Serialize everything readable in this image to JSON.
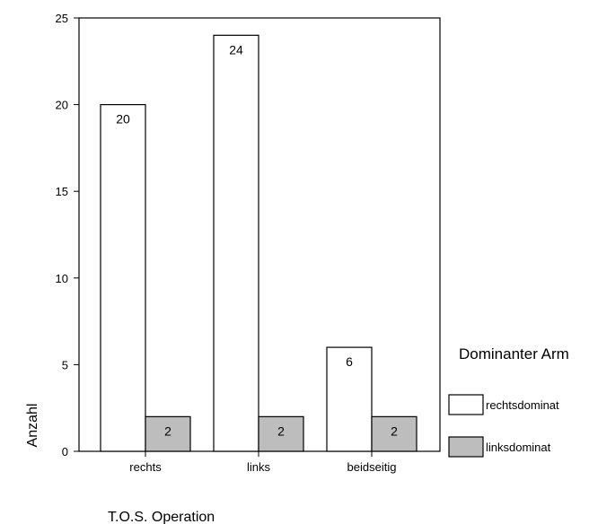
{
  "chart_data": {
    "type": "bar",
    "categories": [
      "rechts",
      "links",
      "beidseitig"
    ],
    "series": [
      {
        "name": "rechtsdominat",
        "values": [
          20,
          24,
          6
        ],
        "color": "#ffffff"
      },
      {
        "name": "linksdominat",
        "values": [
          2,
          2,
          2
        ],
        "color": "#bdbdbd"
      }
    ],
    "data_labels": [
      [
        "20",
        "24",
        "6"
      ],
      [
        "2",
        "2",
        "2"
      ]
    ],
    "xlabel": "T.O.S. Operation",
    "ylabel": "Anzahl",
    "ylim": [
      0,
      25
    ],
    "yticks": [
      0,
      5,
      10,
      15,
      20,
      25
    ],
    "legend": {
      "title": "Dominanter Arm",
      "position": "right"
    },
    "grid": false
  }
}
